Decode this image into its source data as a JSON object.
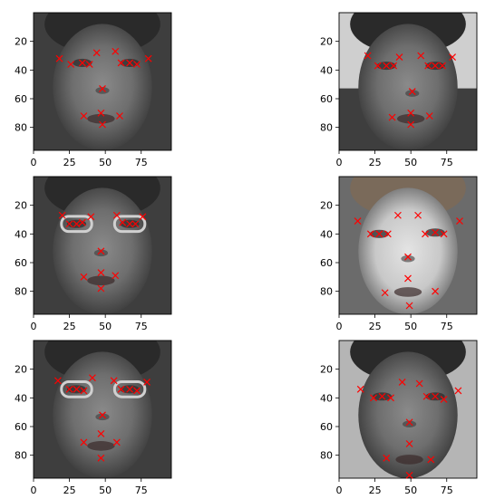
{
  "chart_data": [
    {
      "type": "scatter",
      "image": "grayscale-face-photo",
      "xlim": [
        0,
        96
      ],
      "ylim": [
        96,
        0
      ],
      "xticks": [
        0,
        25,
        50,
        75
      ],
      "yticks": [
        20,
        40,
        60,
        80
      ],
      "marker": "x",
      "marker_color": "#ff0000",
      "x": [
        18,
        26,
        34,
        39,
        44,
        57,
        61,
        67,
        72,
        80,
        48,
        35,
        47,
        60,
        48
      ],
      "y": [
        32,
        36,
        35,
        36,
        28,
        27,
        35,
        35,
        36,
        32,
        53,
        72,
        70,
        72,
        78
      ]
    },
    {
      "type": "scatter",
      "image": "grayscale-face-photo",
      "xlim": [
        0,
        96
      ],
      "ylim": [
        96,
        0
      ],
      "xticks": [
        0,
        25,
        50,
        75
      ],
      "yticks": [
        20,
        40,
        60,
        80
      ],
      "marker": "x",
      "marker_color": "#ff0000",
      "x": [
        20,
        27,
        33,
        38,
        42,
        57,
        62,
        67,
        72,
        79,
        51,
        37,
        50,
        63,
        50
      ],
      "y": [
        30,
        37,
        37,
        37,
        31,
        30,
        37,
        37,
        37,
        31,
        55,
        73,
        70,
        72,
        78
      ]
    },
    {
      "type": "scatter",
      "image": "grayscale-face-photo",
      "xlim": [
        0,
        96
      ],
      "ylim": [
        96,
        0
      ],
      "xticks": [
        0,
        25,
        50,
        75
      ],
      "yticks": [
        20,
        40,
        60,
        80
      ],
      "marker": "x",
      "marker_color": "#ff0000",
      "x": [
        20,
        25,
        30,
        34,
        40,
        58,
        62,
        67,
        71,
        76,
        47,
        35,
        47,
        57,
        47
      ],
      "y": [
        27,
        33,
        33,
        32,
        28,
        27,
        32,
        33,
        33,
        28,
        52,
        70,
        67,
        69,
        78
      ]
    },
    {
      "type": "scatter",
      "image": "grayscale-face-photo",
      "xlim": [
        0,
        96
      ],
      "ylim": [
        96,
        0
      ],
      "xticks": [
        0,
        25,
        50,
        75
      ],
      "yticks": [
        20,
        40,
        60,
        80
      ],
      "marker": "x",
      "marker_color": "#ff0000",
      "x": [
        13,
        22,
        28,
        34,
        41,
        55,
        60,
        67,
        73,
        84,
        48,
        32,
        48,
        67,
        49
      ],
      "y": [
        31,
        40,
        40,
        40,
        27,
        27,
        40,
        39,
        40,
        31,
        56,
        81,
        71,
        80,
        90
      ]
    },
    {
      "type": "scatter",
      "image": "grayscale-face-photo",
      "xlim": [
        0,
        96
      ],
      "ylim": [
        96,
        0
      ],
      "xticks": [
        0,
        25,
        50,
        75
      ],
      "yticks": [
        20,
        40,
        60,
        80
      ],
      "marker": "x",
      "marker_color": "#ff0000",
      "x": [
        17,
        25,
        30,
        35,
        41,
        56,
        61,
        67,
        72,
        79,
        48,
        35,
        47,
        58,
        47
      ],
      "y": [
        28,
        34,
        34,
        35,
        26,
        28,
        34,
        34,
        35,
        29,
        52,
        71,
        65,
        71,
        82
      ]
    },
    {
      "type": "scatter",
      "image": "grayscale-face-photo",
      "xlim": [
        0,
        96
      ],
      "ylim": [
        96,
        0
      ],
      "xticks": [
        0,
        25,
        50,
        75
      ],
      "yticks": [
        20,
        40,
        60,
        80
      ],
      "marker": "x",
      "marker_color": "#ff0000",
      "x": [
        15,
        24,
        30,
        36,
        44,
        56,
        61,
        67,
        73,
        83,
        49,
        33,
        49,
        64,
        49
      ],
      "y": [
        34,
        40,
        39,
        40,
        29,
        30,
        39,
        39,
        41,
        35,
        57,
        82,
        72,
        83,
        94
      ]
    }
  ]
}
